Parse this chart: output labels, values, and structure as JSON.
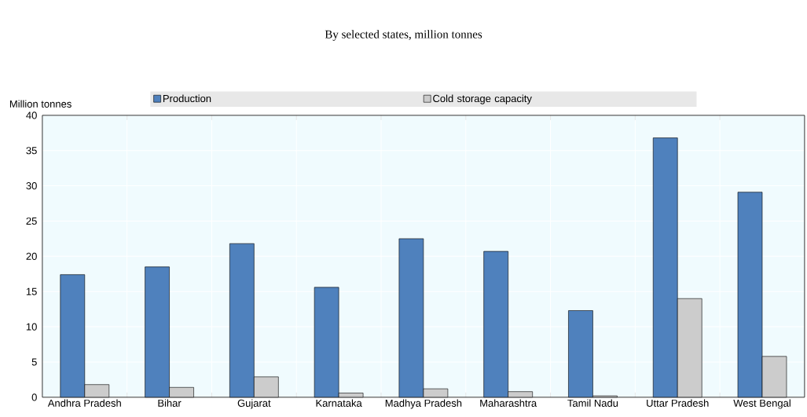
{
  "chart_data": {
    "type": "bar",
    "title": "By selected states, million tonnes",
    "ylabel": "Million tonnes",
    "categories": [
      "Andhra Pradesh",
      "Bihar",
      "Gujarat",
      "Karnataka",
      "Madhya Pradesh",
      "Maharashtra",
      "Tamil Nadu",
      "Uttar Pradesh",
      "West Bengal"
    ],
    "series": [
      {
        "name": "Production",
        "color": "#4f81bd",
        "values": [
          17.4,
          18.5,
          21.8,
          15.6,
          22.5,
          20.7,
          12.3,
          36.8,
          29.1
        ]
      },
      {
        "name": "Cold storage capacity",
        "color": "#cccccc",
        "values": [
          1.8,
          1.4,
          2.9,
          0.6,
          1.2,
          0.8,
          0.2,
          14.0,
          5.8
        ]
      }
    ],
    "ylim": [
      0,
      40
    ],
    "yticks": [
      0,
      5,
      10,
      15,
      20,
      25,
      30,
      35,
      40
    ],
    "grid": true,
    "legend": "top"
  }
}
